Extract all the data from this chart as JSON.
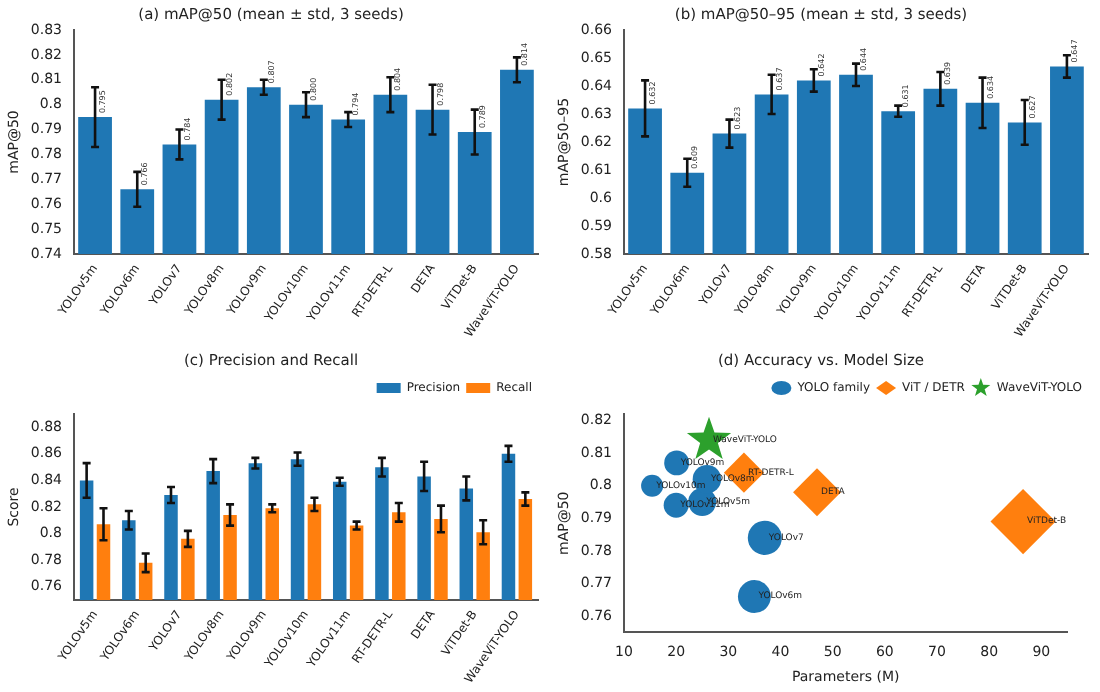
{
  "chart_data": [
    {
      "type": "bar",
      "title": "(a) mAP@50 (mean ± std, 3 seeds)",
      "ylabel": "mAP@50",
      "categories": [
        "YOLOv5m",
        "YOLOv6m",
        "YOLOv7",
        "YOLOv8m",
        "YOLOv9m",
        "YOLOv10m",
        "YOLOv11m",
        "RT-DETR-L",
        "DETA",
        "ViTDet-B",
        "WaveViT-YOLO"
      ],
      "values": [
        0.795,
        0.766,
        0.784,
        0.802,
        0.807,
        0.8,
        0.794,
        0.804,
        0.798,
        0.789,
        0.814
      ],
      "errors": [
        0.012,
        0.007,
        0.006,
        0.008,
        0.003,
        0.005,
        0.003,
        0.007,
        0.01,
        0.009,
        0.005
      ],
      "value_labels": [
        "0.795",
        "0.766",
        "0.784",
        "0.802",
        "0.807",
        "0.800",
        "0.794",
        "0.804",
        "0.798",
        "0.789",
        "0.814"
      ],
      "color": "#1f77b4",
      "ylim": [
        0.74,
        0.83
      ],
      "yticks": [
        0.74,
        0.75,
        0.76,
        0.77,
        0.78,
        0.79,
        0.8,
        0.81,
        0.82,
        0.83
      ],
      "legend": false
    },
    {
      "type": "bar",
      "title": "(b) mAP@50–95 (mean ± std, 3 seeds)",
      "ylabel": "mAP@50–95",
      "categories": [
        "YOLOv5m",
        "YOLOv6m",
        "YOLOv7",
        "YOLOv8m",
        "YOLOv9m",
        "YOLOv10m",
        "YOLOv11m",
        "RT-DETR-L",
        "DETA",
        "ViTDet-B",
        "WaveViT-YOLO"
      ],
      "values": [
        0.632,
        0.609,
        0.623,
        0.637,
        0.642,
        0.644,
        0.631,
        0.639,
        0.634,
        0.627,
        0.647
      ],
      "errors": [
        0.01,
        0.005,
        0.005,
        0.007,
        0.004,
        0.004,
        0.002,
        0.006,
        0.009,
        0.008,
        0.004
      ],
      "value_labels": [
        "0.632",
        "0.609",
        "0.623",
        "0.637",
        "0.642",
        "0.644",
        "0.631",
        "0.639",
        "0.634",
        "0.627",
        "0.647"
      ],
      "color": "#1f77b4",
      "ylim": [
        0.58,
        0.66
      ],
      "yticks": [
        0.58,
        0.59,
        0.6,
        0.61,
        0.62,
        0.63,
        0.64,
        0.65,
        0.66
      ],
      "legend": false
    },
    {
      "type": "bar",
      "title": "(c) Precision and Recall",
      "ylabel": "Score",
      "categories": [
        "YOLOv5m",
        "YOLOv6m",
        "YOLOv7",
        "YOLOv8m",
        "YOLOv9m",
        "YOLOv10m",
        "YOLOv11m",
        "RT-DETR-L",
        "DETA",
        "ViTDet-B",
        "WaveViT-YOLO"
      ],
      "series": [
        {
          "name": "Precision",
          "color": "#1f77b4",
          "values": [
            0.84,
            0.81,
            0.829,
            0.847,
            0.853,
            0.856,
            0.839,
            0.85,
            0.843,
            0.834,
            0.86
          ],
          "errors": [
            0.013,
            0.007,
            0.006,
            0.009,
            0.004,
            0.005,
            0.003,
            0.007,
            0.011,
            0.009,
            0.006
          ]
        },
        {
          "name": "Recall",
          "color": "#ff7f0e",
          "values": [
            0.807,
            0.778,
            0.796,
            0.814,
            0.819,
            0.822,
            0.806,
            0.816,
            0.811,
            0.801,
            0.826
          ],
          "errors": [
            0.012,
            0.007,
            0.006,
            0.008,
            0.003,
            0.005,
            0.003,
            0.007,
            0.01,
            0.009,
            0.005
          ]
        }
      ],
      "ylim": [
        0.75,
        0.89
      ],
      "yticks": [
        0.76,
        0.78,
        0.8,
        0.82,
        0.84,
        0.86,
        0.88
      ],
      "legend": "top right"
    },
    {
      "type": "bubble",
      "title": "(d) Accuracy vs. Model Size",
      "xlabel": "Parameters (M)",
      "ylabel": "mAP@50",
      "series": [
        {
          "name": "YOLO family",
          "color": "#1f77b4",
          "marker": "circle",
          "x": [
            25,
            35,
            37,
            25.9,
            20.1,
            15.4,
            20
          ],
          "values": [
            0.795,
            0.766,
            0.784,
            0.802,
            0.807,
            0.8,
            0.794
          ],
          "sizes": [
            0.29,
            0.4,
            0.43,
            0.3,
            0.23,
            0.18,
            0.23
          ]
        },
        {
          "name": "ViT / DETR",
          "color": "#ff7f0e",
          "marker": "diamond",
          "x": [
            33,
            47,
            86.5
          ],
          "values": [
            0.804,
            0.798,
            0.789
          ],
          "sizes": [
            0.38,
            0.54,
            1
          ]
        },
        {
          "name": "WaveViT-YOLO",
          "color": "#2ca02c",
          "marker": "star",
          "x": [
            26.3
          ],
          "values": [
            0.814
          ],
          "sizes": [
            0.3
          ]
        }
      ],
      "annotations": [
        {
          "text": "YOLOv5m",
          "x": 25,
          "y": 0.795
        },
        {
          "text": "YOLOv6m",
          "x": 35,
          "y": 0.766
        },
        {
          "text": "YOLOv7",
          "x": 37,
          "y": 0.784
        },
        {
          "text": "YOLOv8m",
          "x": 25.9,
          "y": 0.802
        },
        {
          "text": "YOLOv9m",
          "x": 20.1,
          "y": 0.807
        },
        {
          "text": "YOLOv10m",
          "x": 15.4,
          "y": 0.8
        },
        {
          "text": "YOLOv11m",
          "x": 20,
          "y": 0.794
        },
        {
          "text": "RT-DETR-L",
          "x": 33,
          "y": 0.804
        },
        {
          "text": "DETA",
          "x": 47,
          "y": 0.798
        },
        {
          "text": "ViTDet-B",
          "x": 86.5,
          "y": 0.789
        },
        {
          "text": "WaveViT-YOLO",
          "x": 26.3,
          "y": 0.814
        }
      ],
      "xlim": [
        10,
        95
      ],
      "xticks": [
        10,
        20,
        30,
        40,
        50,
        60,
        70,
        80,
        90
      ],
      "ylim": [
        0.755,
        0.822
      ],
      "yticks": [
        0.76,
        0.77,
        0.78,
        0.79,
        0.8,
        0.81,
        0.82
      ],
      "legend": "top right"
    }
  ]
}
